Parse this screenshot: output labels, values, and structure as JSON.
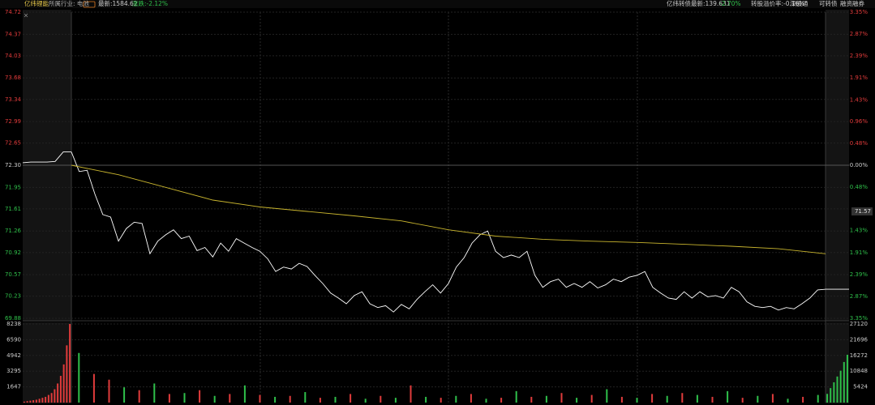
{
  "header": {
    "left": [
      "亿纬锂能",
      "所属行业: 电池",
      "最新:1584.62",
      "涨跌:-2.12%"
    ],
    "right": [
      "亿纬转债最新:139.631",
      "-2.70%",
      "转股溢价率:-0.16%",
      "深股通",
      "可转债",
      "融资融券"
    ]
  },
  "chart_data": [
    {
      "type": "line",
      "ylim": [
        69.88,
        74.72
      ],
      "yticks": [
        74.72,
        74.37,
        74.03,
        73.68,
        73.34,
        72.99,
        72.65,
        {
          "value": 72.3,
          "label": "72.30"
        },
        71.95,
        71.61,
        71.26,
        70.92,
        70.57,
        70.23,
        69.88
      ],
      "y2lim": [
        -3.35,
        3.35
      ],
      "y2ticks": [
        {
          "value": 3.35,
          "label": "3.35%"
        },
        {
          "value": 2.87,
          "label": "2.87%"
        },
        {
          "value": 2.39,
          "label": "2.39%"
        },
        {
          "value": 1.91,
          "label": "1.91%"
        },
        {
          "value": 1.43,
          "label": "1.43%"
        },
        {
          "value": 0.96,
          "label": "0.96%"
        },
        {
          "value": 0.48,
          "label": "0.48%"
        },
        {
          "value": 0,
          "label": "0.00%"
        },
        {
          "value": -0.48,
          "label": "0.48%"
        },
        {
          "value": -1.43,
          "label": "1.43%"
        },
        {
          "value": -1.91,
          "label": "1.91%"
        },
        {
          "value": -2.39,
          "label": "2.39%"
        },
        {
          "value": -2.87,
          "label": "2.87%"
        },
        {
          "value": -3.35,
          "label": "3.35%"
        }
      ],
      "marker": 71.57,
      "grid": true,
      "series": [
        {
          "session": "pre",
          "color": "#ffffff",
          "values": [
            72.34,
            72.35,
            72.35,
            72.35,
            72.36,
            72.51,
            72.51
          ]
        },
        {
          "session": "main",
          "color": "#ffffff",
          "values": [
            72.51,
            72.2,
            72.22,
            71.84,
            71.52,
            71.48,
            71.1,
            71.3,
            71.4,
            71.38,
            70.9,
            71.1,
            71.2,
            71.28,
            71.14,
            71.18,
            70.95,
            71.0,
            70.85,
            71.07,
            70.94,
            71.14,
            71.07,
            71.0,
            70.94,
            70.82,
            70.62,
            70.69,
            70.66,
            70.75,
            70.7,
            70.56,
            70.43,
            70.28,
            70.2,
            70.11,
            70.24,
            70.3,
            70.11,
            70.05,
            70.08,
            69.98,
            70.1,
            70.03,
            70.18,
            70.3,
            70.41,
            70.28,
            70.43,
            70.69,
            70.84,
            71.07,
            71.2,
            71.26,
            70.94,
            70.84,
            70.88,
            70.84,
            70.94,
            70.56,
            70.37,
            70.46,
            70.5,
            70.37,
            70.43,
            70.37,
            70.46,
            70.36,
            70.41,
            70.5,
            70.46,
            70.53,
            70.56,
            70.62,
            70.37,
            70.28,
            70.2,
            70.18,
            70.3,
            70.2,
            70.3,
            70.22,
            70.24,
            70.2,
            70.37,
            70.3,
            70.14,
            70.07,
            70.05,
            70.07,
            70.01,
            70.05,
            70.03,
            70.11,
            70.2,
            70.33,
            70.34
          ]
        },
        {
          "session": "main",
          "color": "#c9b52e",
          "values": [
            72.3,
            72.15,
            71.95,
            71.75,
            71.64,
            71.57,
            71.5,
            71.42,
            71.28,
            71.18,
            71.13,
            71.1,
            71.08,
            71.05,
            71.02,
            70.98,
            70.9
          ]
        },
        {
          "session": "post",
          "color": "#ffffff",
          "values": [
            70.34,
            70.34
          ]
        }
      ]
    },
    {
      "type": "bar",
      "ylim": [
        0,
        8238
      ],
      "yticks": [
        8238,
        6590,
        4942,
        3295,
        1647
      ],
      "y2lim": [
        0,
        27120
      ],
      "y2ticks": [
        27120,
        21696,
        16272,
        10848,
        5424
      ],
      "series": [
        {
          "session": "pre",
          "color": "#e03b3b",
          "values": [
            100,
            150,
            200,
            250,
            300,
            400,
            500,
            600,
            800,
            1000,
            1400,
            2000,
            2800,
            4000,
            6000,
            8238
          ]
        },
        {
          "session": "main",
          "color": "#e03b3b",
          "values": [
            null,
            3000,
            2400,
            null,
            1300,
            null,
            900,
            null,
            1300,
            null,
            900,
            null,
            800,
            null,
            700,
            null,
            500,
            null,
            900,
            null,
            700,
            null,
            1800,
            null,
            500,
            null,
            900,
            null,
            500,
            null,
            600,
            null,
            1000,
            null,
            800,
            null,
            600,
            null,
            900,
            null,
            1000,
            null,
            600,
            null,
            500,
            null,
            900,
            null,
            600,
            null
          ]
        },
        {
          "session": "main",
          "color": "#2fbf4a",
          "values": [
            5200,
            null,
            null,
            1600,
            null,
            2000,
            null,
            1000,
            null,
            700,
            null,
            1800,
            null,
            600,
            null,
            1100,
            null,
            600,
            null,
            400,
            null,
            500,
            null,
            600,
            null,
            700,
            null,
            400,
            null,
            1200,
            null,
            700,
            null,
            500,
            null,
            1400,
            null,
            500,
            null,
            700,
            null,
            800,
            null,
            1200,
            null,
            700,
            null,
            400,
            null,
            800
          ]
        },
        {
          "session": "post",
          "color": "#2fbf4a",
          "axis": "y2",
          "values": [
            3000,
            5000,
            7000,
            9000,
            11000,
            14000,
            16500
          ]
        }
      ]
    }
  ]
}
